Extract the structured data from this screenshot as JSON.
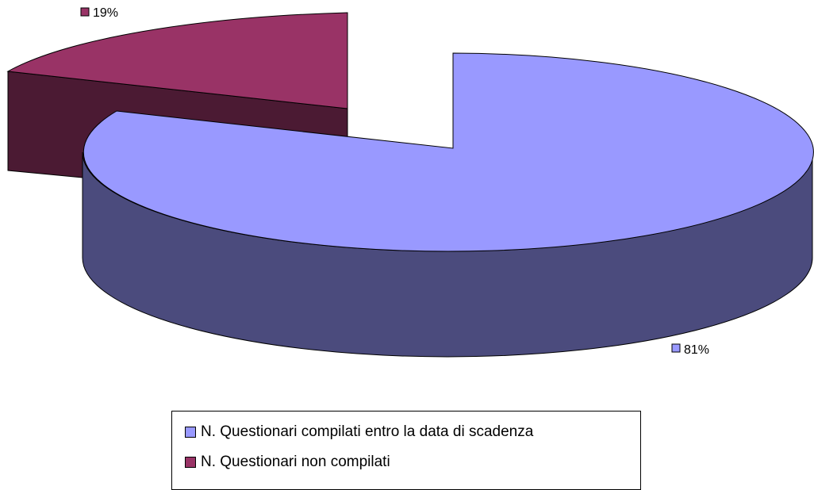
{
  "chart_data": {
    "type": "pie",
    "title": "",
    "slices": [
      {
        "label": "N. Questionari compilati entro la data di scadenza",
        "value": 81,
        "display": "81%",
        "color": "#9999FF",
        "side_color": "#4B4B7D"
      },
      {
        "label": "N. Questionari non compilati",
        "value": 19,
        "display": "19%",
        "color": "#993366",
        "side_color": "#4B1A33"
      }
    ],
    "legend": {
      "items": [
        {
          "label": "N. Questionari compilati entro la data di scadenza",
          "color": "#9999FF"
        },
        {
          "label": "N. Questionari non compilati",
          "color": "#993366"
        }
      ]
    }
  }
}
